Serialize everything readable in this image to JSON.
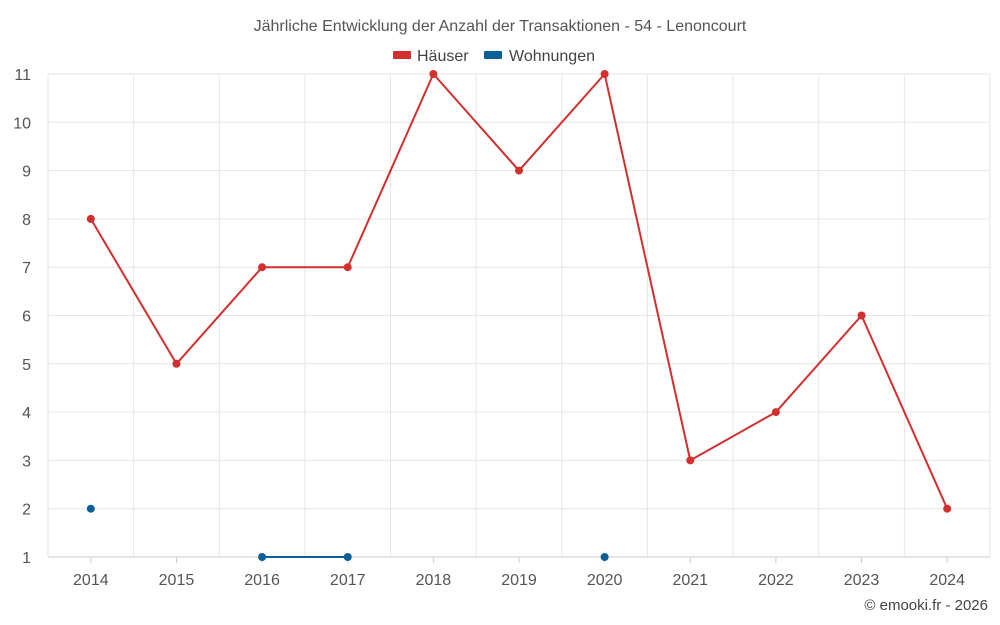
{
  "chart_data": {
    "type": "line",
    "title": "Jährliche Entwicklung der Anzahl der Transaktionen - 54 - Lenoncourt",
    "categories": [
      "2014",
      "2015",
      "2016",
      "2017",
      "2018",
      "2019",
      "2020",
      "2021",
      "2022",
      "2023",
      "2024"
    ],
    "series": [
      {
        "name": "Häuser",
        "color": "#d32f2f",
        "values": [
          8,
          5,
          7,
          7,
          11,
          9,
          11,
          3,
          4,
          6,
          2
        ]
      },
      {
        "name": "Wohnungen",
        "color": "#0b5f99",
        "values": [
          2,
          null,
          1,
          1,
          null,
          null,
          1,
          null,
          null,
          null,
          null
        ]
      }
    ],
    "yticks": [
      "1",
      "2",
      "3",
      "4",
      "5",
      "6",
      "7",
      "8",
      "9",
      "10",
      "11"
    ],
    "ylim": [
      1,
      11
    ],
    "xlabel": "",
    "ylabel": "",
    "grid": true,
    "legend_position": "top-center"
  },
  "credit": "© emooki.fr - 2026"
}
